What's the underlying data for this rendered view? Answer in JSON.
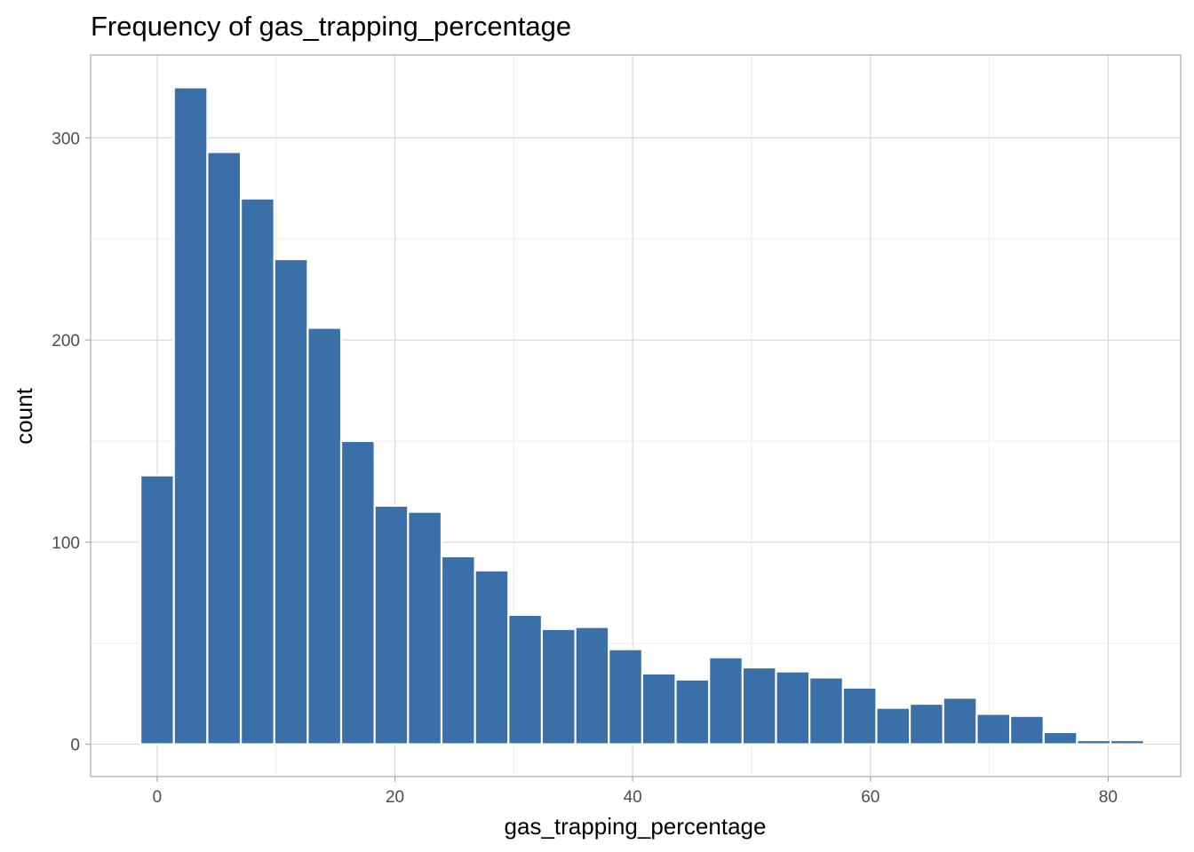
{
  "chart_data": {
    "type": "bar",
    "title": "Frequency of gas_trapping_percentage",
    "xlabel": "gas_trapping_percentage",
    "ylabel": "count",
    "bin_width": 2.814,
    "bin_start": -1.407,
    "values": [
      133,
      325,
      293,
      270,
      240,
      206,
      150,
      118,
      115,
      93,
      86,
      64,
      57,
      58,
      47,
      35,
      32,
      43,
      38,
      36,
      33,
      28,
      18,
      20,
      23,
      15,
      14,
      6,
      2,
      2
    ],
    "xlim": [
      -5.6,
      86.1
    ],
    "ylim": [
      -16,
      341
    ],
    "x_ticks": [
      0,
      20,
      40,
      60,
      80
    ],
    "x_tick_labels": [
      "0",
      "20",
      "40",
      "60",
      "80"
    ],
    "y_ticks": [
      0,
      100,
      200,
      300
    ],
    "y_tick_labels": [
      "0",
      "100",
      "200",
      "300"
    ],
    "grid": true,
    "legend": false,
    "colors": {
      "bar_fill": "#3a6fa8",
      "bar_stroke": "#ffffff",
      "grid_major": "#d9d9d9",
      "grid_minor": "#ececec",
      "panel_border": "#aaaaaa",
      "tick_text": "#4d4d4d"
    }
  }
}
